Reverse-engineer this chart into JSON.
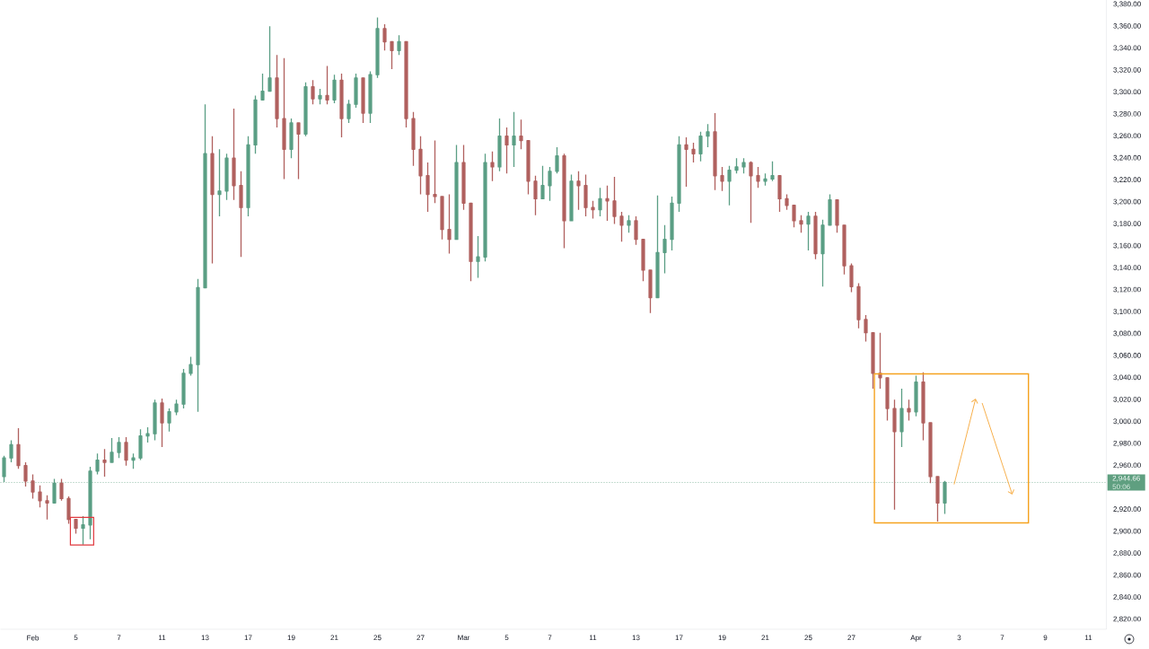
{
  "chart_data": {
    "type": "candlestick",
    "categories": [
      null,
      null,
      null,
      null,
      "Feb",
      null,
      null,
      null,
      null,
      null,
      "5",
      null,
      null,
      null,
      null,
      null,
      "7",
      null,
      null,
      null,
      null,
      null,
      "11",
      null,
      null,
      null,
      null,
      null,
      "13",
      null,
      null,
      null,
      null,
      null,
      "17",
      null,
      null,
      null,
      null,
      null,
      "19",
      null,
      null,
      null,
      null,
      null,
      "21",
      null,
      null,
      null,
      null,
      null,
      "25",
      null,
      null,
      null,
      null,
      null,
      "27",
      null,
      null,
      null,
      null,
      null,
      "Mar",
      null,
      null,
      null,
      null,
      null,
      "5",
      null,
      null,
      null,
      null,
      null,
      "7",
      null,
      null,
      null,
      null,
      null,
      "11",
      null,
      null,
      null,
      null,
      null,
      "13",
      null,
      null,
      null,
      null,
      null,
      "17",
      null,
      null,
      null,
      null,
      null,
      "19",
      null,
      null,
      null,
      null,
      null,
      "21",
      null,
      null,
      null,
      null,
      null,
      "25",
      null,
      null,
      null,
      null,
      null,
      "27",
      null,
      null,
      null,
      null,
      null,
      null,
      null,
      null,
      "Apr",
      null,
      null,
      null,
      null,
      null,
      "3",
      null,
      null,
      null,
      null,
      null,
      "7",
      null,
      null,
      null,
      null,
      null,
      "9",
      null,
      null,
      null,
      null,
      null,
      "11",
      null,
      null
    ],
    "ohlc": [
      [
        2950,
        2969,
        2945,
        2967
      ],
      [
        2967,
        2983,
        2963,
        2979
      ],
      [
        2979,
        2994,
        2957,
        2960
      ],
      [
        2960,
        2963,
        2941,
        2946
      ],
      [
        2946,
        2952,
        2930,
        2936
      ],
      [
        2936,
        2942,
        2922,
        2928
      ],
      [
        2928,
        2933,
        2911,
        2926
      ],
      [
        2926,
        2948,
        2926,
        2944
      ],
      [
        2944,
        2948,
        2928,
        2930
      ],
      [
        2930,
        2932,
        2907,
        2911
      ],
      [
        2911,
        2911,
        2898,
        2903
      ],
      [
        2903,
        2914,
        2888,
        2906
      ],
      [
        2906,
        2959,
        2893,
        2955
      ],
      [
        2955,
        2971,
        2952,
        2965
      ],
      [
        2965,
        2975,
        2950,
        2963
      ],
      [
        2963,
        2985,
        2963,
        2972
      ],
      [
        2972,
        2986,
        2967,
        2981
      ],
      [
        2981,
        2986,
        2960,
        2965
      ],
      [
        2965,
        2971,
        2957,
        2967
      ],
      [
        2967,
        2993,
        2965,
        2987
      ],
      [
        2987,
        2995,
        2981,
        2989
      ],
      [
        2989,
        3020,
        2983,
        3017
      ],
      [
        3017,
        3021,
        2977,
        2999
      ],
      [
        2999,
        3012,
        2991,
        3009
      ],
      [
        3009,
        3020,
        3006,
        3016
      ],
      [
        3016,
        3048,
        3012,
        3044
      ],
      [
        3044,
        3059,
        3042,
        3052
      ],
      [
        3052,
        3130,
        3009,
        3122
      ],
      [
        3122,
        3289,
        3122,
        3244
      ],
      [
        3244,
        3260,
        3144,
        3207
      ],
      [
        3207,
        3248,
        3187,
        3210
      ],
      [
        3210,
        3244,
        3202,
        3240
      ],
      [
        3240,
        3285,
        3202,
        3215
      ],
      [
        3215,
        3228,
        3150,
        3195
      ],
      [
        3195,
        3260,
        3187,
        3252
      ],
      [
        3252,
        3297,
        3244,
        3293
      ],
      [
        3293,
        3317,
        3293,
        3301
      ],
      [
        3301,
        3360,
        3301,
        3313
      ],
      [
        3313,
        3334,
        3268,
        3276
      ],
      [
        3276,
        3331,
        3221,
        3248
      ],
      [
        3248,
        3276,
        3240,
        3272
      ],
      [
        3272,
        3272,
        3221,
        3262
      ],
      [
        3262,
        3309,
        3260,
        3305
      ],
      [
        3305,
        3311,
        3289,
        3294
      ],
      [
        3294,
        3303,
        3289,
        3297
      ],
      [
        3297,
        3324,
        3289,
        3293
      ],
      [
        3293,
        3316,
        3290,
        3311
      ],
      [
        3311,
        3317,
        3259,
        3276
      ],
      [
        3276,
        3293,
        3272,
        3289
      ],
      [
        3289,
        3317,
        3286,
        3313
      ],
      [
        3313,
        3313,
        3272,
        3281
      ],
      [
        3281,
        3319,
        3272,
        3316
      ],
      [
        3316,
        3368,
        3313,
        3358
      ],
      [
        3358,
        3362,
        3338,
        3346
      ],
      [
        3346,
        3346,
        3321,
        3338
      ],
      [
        3338,
        3352,
        3334,
        3346
      ],
      [
        3346,
        3346,
        3268,
        3276
      ],
      [
        3276,
        3282,
        3233,
        3248
      ],
      [
        3248,
        3260,
        3207,
        3224
      ],
      [
        3224,
        3236,
        3191,
        3207
      ],
      [
        3207,
        3256,
        3199,
        3205
      ],
      [
        3205,
        3205,
        3166,
        3175
      ],
      [
        3175,
        3207,
        3153,
        3166
      ],
      [
        3166,
        3252,
        3166,
        3236
      ],
      [
        3236,
        3252,
        3193,
        3199
      ],
      [
        3199,
        3199,
        3128,
        3146
      ],
      [
        3146,
        3169,
        3131,
        3150
      ],
      [
        3150,
        3244,
        3146,
        3236
      ],
      [
        3236,
        3246,
        3219,
        3232
      ],
      [
        3232,
        3276,
        3228,
        3260
      ],
      [
        3260,
        3268,
        3226,
        3252
      ],
      [
        3252,
        3282,
        3232,
        3260
      ],
      [
        3260,
        3275,
        3248,
        3256
      ],
      [
        3256,
        3256,
        3207,
        3219
      ],
      [
        3219,
        3224,
        3188,
        3203
      ],
      [
        3203,
        3233,
        3203,
        3215
      ],
      [
        3215,
        3232,
        3201,
        3228
      ],
      [
        3228,
        3250,
        3226,
        3242
      ],
      [
        3242,
        3244,
        3158,
        3183
      ],
      [
        3183,
        3225,
        3183,
        3219
      ],
      [
        3219,
        3228,
        3193,
        3215
      ],
      [
        3215,
        3225,
        3187,
        3195
      ],
      [
        3195,
        3201,
        3185,
        3193
      ],
      [
        3193,
        3213,
        3187,
        3203
      ],
      [
        3203,
        3215,
        3183,
        3201
      ],
      [
        3201,
        3223,
        3180,
        3187
      ],
      [
        3187,
        3191,
        3164,
        3179
      ],
      [
        3179,
        3188,
        3172,
        3183
      ],
      [
        3183,
        3187,
        3161,
        3166
      ],
      [
        3166,
        3166,
        3128,
        3138
      ],
      [
        3138,
        3138,
        3099,
        3113
      ],
      [
        3113,
        3206,
        3113,
        3154
      ],
      [
        3154,
        3179,
        3135,
        3166
      ],
      [
        3166,
        3205,
        3156,
        3199
      ],
      [
        3199,
        3260,
        3191,
        3252
      ],
      [
        3252,
        3259,
        3214,
        3248
      ],
      [
        3248,
        3254,
        3236,
        3244
      ],
      [
        3244,
        3264,
        3237,
        3260
      ],
      [
        3260,
        3271,
        3250,
        3264
      ],
      [
        3264,
        3281,
        3211,
        3224
      ],
      [
        3224,
        3232,
        3210,
        3219
      ],
      [
        3219,
        3233,
        3197,
        3229
      ],
      [
        3229,
        3240,
        3226,
        3232
      ],
      [
        3232,
        3240,
        3226,
        3236
      ],
      [
        3236,
        3237,
        3181,
        3224
      ],
      [
        3224,
        3232,
        3213,
        3219
      ],
      [
        3219,
        3226,
        3215,
        3221
      ],
      [
        3221,
        3237,
        3219,
        3224
      ],
      [
        3224,
        3224,
        3191,
        3203
      ],
      [
        3203,
        3207,
        3193,
        3197
      ],
      [
        3197,
        3197,
        3177,
        3183
      ],
      [
        3183,
        3188,
        3172,
        3180
      ],
      [
        3180,
        3191,
        3156,
        3187
      ],
      [
        3187,
        3191,
        3148,
        3153
      ],
      [
        3153,
        3184,
        3123,
        3179
      ],
      [
        3179,
        3207,
        3179,
        3202
      ],
      [
        3202,
        3202,
        3172,
        3179
      ],
      [
        3179,
        3179,
        3134,
        3142
      ],
      [
        3142,
        3144,
        3118,
        3123
      ],
      [
        3123,
        3126,
        3085,
        3093
      ],
      [
        3093,
        3097,
        3073,
        3081
      ],
      [
        3081,
        3081,
        3030,
        3044
      ],
      [
        3044,
        3081,
        3030,
        3040
      ],
      [
        3040,
        3040,
        3001,
        3012
      ],
      [
        3012,
        3020,
        2920,
        2991
      ],
      [
        2991,
        3030,
        2977,
        3012
      ],
      [
        3012,
        3020,
        3001,
        3009
      ],
      [
        3009,
        3042,
        3005,
        3036
      ],
      [
        3036,
        3045,
        2983,
        2999
      ],
      [
        2999,
        2999,
        2944,
        2950
      ],
      [
        2950,
        2950,
        2909,
        2926
      ],
      [
        2926,
        2946,
        2916,
        2944.66
      ],
      null,
      null,
      null,
      null,
      null,
      null,
      null,
      null,
      null,
      null,
      null,
      null,
      null,
      null,
      null,
      null,
      null,
      null,
      null,
      null,
      null,
      null
    ],
    "colors": [
      "#5a9e84",
      "#5a9e84",
      "#b0605e",
      "#b0605e",
      "#b0605e",
      "#b0605e",
      "#b0605e",
      "#5a9e84",
      "#b0605e",
      "#b0605e",
      "#b0605e",
      "#5a9e84",
      "#5a9e84",
      "#5a9e84",
      "#b0605e",
      "#5a9e84",
      "#5a9e84",
      "#b0605e",
      "#5a9e84",
      "#5a9e84",
      "#5a9e84",
      "#5a9e84",
      "#b0605e",
      "#5a9e84",
      "#5a9e84",
      "#5a9e84",
      "#5a9e84",
      "#5a9e84",
      "#5a9e84",
      "#b0605e",
      "#5a9e84",
      "#5a9e84",
      "#b0605e",
      "#b0605e",
      "#5a9e84",
      "#5a9e84",
      "#5a9e84",
      "#5a9e84",
      "#b0605e",
      "#b0605e",
      "#5a9e84",
      "#b0605e",
      "#5a9e84",
      "#b0605e",
      "#5a9e84",
      "#b0605e",
      "#5a9e84",
      "#b0605e",
      "#5a9e84",
      "#5a9e84",
      "#b0605e",
      "#5a9e84",
      "#5a9e84",
      "#b0605e",
      "#b0605e",
      "#5a9e84",
      "#b0605e",
      "#b0605e",
      "#b0605e",
      "#b0605e",
      "#b0605e",
      "#b0605e",
      "#b0605e",
      "#5a9e84",
      "#b0605e",
      "#b0605e",
      "#5a9e84",
      "#5a9e84",
      "#b0605e",
      "#5a9e84",
      "#b0605e",
      "#5a9e84",
      "#b0605e",
      "#b0605e",
      "#b0605e",
      "#5a9e84",
      "#5a9e84",
      "#5a9e84",
      "#b0605e",
      "#5a9e84",
      "#b0605e",
      "#b0605e",
      "#b0605e",
      "#5a9e84",
      "#b0605e",
      "#b0605e",
      "#b0605e",
      "#5a9e84",
      "#b0605e",
      "#b0605e",
      "#b0605e",
      "#5a9e84",
      "#5a9e84",
      "#5a9e84",
      "#5a9e84",
      "#b0605e",
      "#b0605e",
      "#5a9e84",
      "#5a9e84",
      "#b0605e",
      "#b0605e",
      "#5a9e84",
      "#5a9e84",
      "#5a9e84",
      "#b0605e",
      "#b0605e",
      "#5a9e84",
      "#5a9e84",
      "#b0605e",
      "#b0605e",
      "#b0605e",
      "#b0605e",
      "#5a9e84",
      "#b0605e",
      "#5a9e84",
      "#5a9e84",
      "#b0605e",
      "#b0605e",
      "#b0605e",
      "#b0605e",
      "#b0605e",
      "#b0605e",
      "#b0605e",
      "#b0605e",
      "#b0605e",
      "#5a9e84",
      "#b0605e",
      "#5a9e84",
      "#b0605e",
      "#b0605e",
      "#b0605e",
      "#5a9e84",
      null,
      null,
      null,
      null,
      null,
      null,
      null,
      null,
      null,
      null,
      null,
      null,
      null,
      null,
      null,
      null,
      null,
      null,
      null,
      null,
      null,
      null
    ],
    "ylim": [
      2811,
      3384
    ],
    "yticks": [
      {
        "value": 2820,
        "label": "2,820.00"
      },
      {
        "value": 2840,
        "label": "2,840.00"
      },
      {
        "value": 2860,
        "label": "2,860.00"
      },
      {
        "value": 2880,
        "label": "2,880.00"
      },
      {
        "value": 2900,
        "label": "2,900.00"
      },
      {
        "value": 2920,
        "label": "2,920.00"
      },
      {
        "value": 2960,
        "label": "2,960.00"
      },
      {
        "value": 2980,
        "label": "2,980.00"
      },
      {
        "value": 3000,
        "label": "3,000.00"
      },
      {
        "value": 3020,
        "label": "3,020.00"
      },
      {
        "value": 3040,
        "label": "3,040.00"
      },
      {
        "value": 3060,
        "label": "3,060.00"
      },
      {
        "value": 3080,
        "label": "3,080.00"
      },
      {
        "value": 3100,
        "label": "3,100.00"
      },
      {
        "value": 3120,
        "label": "3,120.00"
      },
      {
        "value": 3140,
        "label": "3,140.00"
      },
      {
        "value": 3160,
        "label": "3,160.00"
      },
      {
        "value": 3180,
        "label": "3,180.00"
      },
      {
        "value": 3200,
        "label": "3,200.00"
      },
      {
        "value": 3220,
        "label": "3,220.00"
      },
      {
        "value": 3240,
        "label": "3,240.00"
      },
      {
        "value": 3260,
        "label": "3,260.00"
      },
      {
        "value": 3280,
        "label": "3,280.00"
      },
      {
        "value": 3300,
        "label": "3,300.00"
      },
      {
        "value": 3320,
        "label": "3,320.00"
      },
      {
        "value": 3340,
        "label": "3,340.00"
      },
      {
        "value": 3360,
        "label": "3,360.00"
      },
      {
        "value": 3380,
        "label": "3,380.00"
      }
    ],
    "ref_lines": [
      {
        "axis": "y",
        "value": 2944.66,
        "label": "2,944.66",
        "color": "#5f9f80",
        "line_style": "dotted"
      }
    ],
    "annotations": [
      "50:06"
    ]
  }
}
